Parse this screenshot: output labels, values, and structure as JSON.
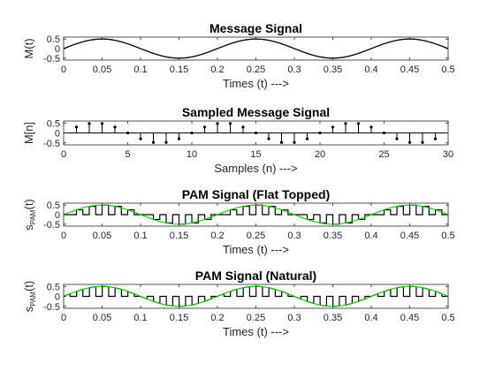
{
  "chart_data": [
    {
      "type": "line",
      "title": "Message Signal",
      "xlabel": "Times (t) --->",
      "ylabel": "M(t)",
      "xlim": [
        0,
        0.5
      ],
      "ylim": [
        -0.6,
        0.6
      ],
      "xticks": [
        "0",
        "0.05",
        "0.1",
        "0.15",
        "0.2",
        "0.25",
        "0.3",
        "0.35",
        "0.4",
        "0.45",
        "0.5"
      ],
      "yticks": [
        "-0.5",
        "0",
        "0.5"
      ],
      "series": [
        {
          "function": "0.5*sin(2*pi*5*t)",
          "frequency_hz": 5,
          "amplitude": 0.5,
          "color": "#000000"
        }
      ]
    },
    {
      "type": "stem",
      "title": "Sampled Message Signal",
      "xlabel": "Samples (n) --->",
      "ylabel": "M[n]",
      "xlim": [
        0,
        30
      ],
      "ylim": [
        -0.6,
        0.6
      ],
      "xticks": [
        "0",
        "5",
        "10",
        "15",
        "20",
        "25",
        "30"
      ],
      "yticks": [
        "-0.5",
        "0",
        "0.5"
      ],
      "n": [
        1,
        2,
        3,
        4,
        5,
        6,
        7,
        8,
        9,
        10,
        11,
        12,
        13,
        14,
        15,
        16,
        17,
        18,
        19,
        20,
        21,
        22,
        23,
        24,
        25,
        26,
        27,
        28,
        29
      ],
      "values": [
        0.294,
        0.476,
        0.476,
        0.294,
        0,
        -0.294,
        -0.476,
        -0.476,
        -0.294,
        0,
        0.294,
        0.476,
        0.476,
        0.294,
        0,
        -0.294,
        -0.476,
        -0.476,
        -0.294,
        0,
        0.294,
        0.476,
        0.476,
        0.294,
        0,
        -0.294,
        -0.476,
        -0.476,
        -0.294
      ],
      "color": "#000000"
    },
    {
      "type": "line",
      "title": "PAM Signal (Flat Topped)",
      "xlabel": "Times (t) --->",
      "ylabel": "s",
      "ylabel_sub": "PAM",
      "ylabel_suffix": "(t)",
      "xlim": [
        0,
        0.5
      ],
      "ylim": [
        -0.6,
        0.6
      ],
      "xticks": [
        "0",
        "0.05",
        "0.1",
        "0.15",
        "0.2",
        "0.25",
        "0.3",
        "0.35",
        "0.4",
        "0.45",
        "0.5"
      ],
      "yticks": [
        "-0.5",
        "0",
        "0.5"
      ],
      "pulse_period": 0.01667,
      "pulse_width": 0.00833,
      "pulse_heights": [
        0,
        0.25,
        0.433,
        0.5,
        0.433,
        0.25,
        0,
        -0.25,
        -0.433,
        -0.5,
        -0.433,
        -0.25,
        0,
        0.25,
        0.433,
        0.5,
        0.433,
        0.25,
        0,
        -0.25,
        -0.433,
        -0.5,
        -0.433,
        -0.25,
        0,
        0.25,
        0.433,
        0.5,
        0.433,
        0.25
      ],
      "series": [
        {
          "name": "",
          "color": "#000000"
        },
        {
          "name": "",
          "color": "#00cc00",
          "function": "0.5*sin(2*pi*5*t)"
        }
      ]
    },
    {
      "type": "line",
      "title": "PAM Signal (Natural)",
      "xlabel": "Times (t) --->",
      "ylabel": "s",
      "ylabel_sub": "PAM",
      "ylabel_suffix": "(t)",
      "xlim": [
        0,
        0.5
      ],
      "ylim": [
        -0.6,
        0.6
      ],
      "xticks": [
        "0",
        "0.05",
        "0.1",
        "0.15",
        "0.2",
        "0.25",
        "0.3",
        "0.35",
        "0.4",
        "0.45",
        "0.5"
      ],
      "yticks": [
        "-0.5",
        "0",
        "0.5"
      ],
      "pulse_period": 0.01667,
      "pulse_width": 0.00833,
      "series": [
        {
          "name": "",
          "color": "#000000",
          "function": "gated 0.5*sin(2*pi*5*t)"
        },
        {
          "name": "",
          "color": "#00cc00",
          "function": "0.5*sin(2*pi*5*t)"
        }
      ]
    }
  ]
}
